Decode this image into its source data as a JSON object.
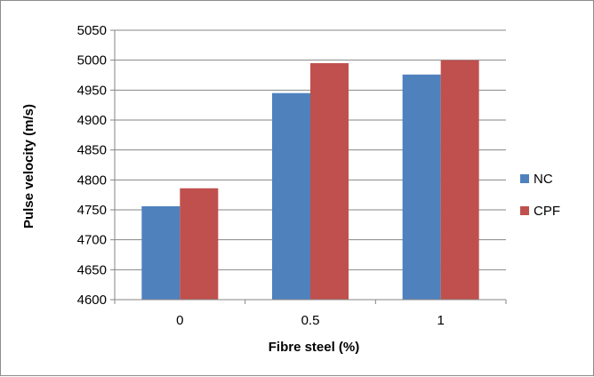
{
  "chart_data": {
    "type": "bar",
    "categories": [
      "0",
      "0.5",
      "1"
    ],
    "series": [
      {
        "name": "NC",
        "values": [
          4756,
          4945,
          4976
        ],
        "color": "#4f81bd"
      },
      {
        "name": "CPF",
        "values": [
          4786,
          4995,
          5000
        ],
        "color": "#c0504d"
      }
    ],
    "xlabel": "Fibre steel (%)",
    "ylabel": "Pulse velocity (m/s)",
    "ylim": [
      4600,
      5050
    ],
    "yticks": [
      "4600",
      "4650",
      "4700",
      "4750",
      "4800",
      "4850",
      "4900",
      "4950",
      "5000",
      "5050"
    ],
    "grid": true,
    "legend_position": "right"
  }
}
